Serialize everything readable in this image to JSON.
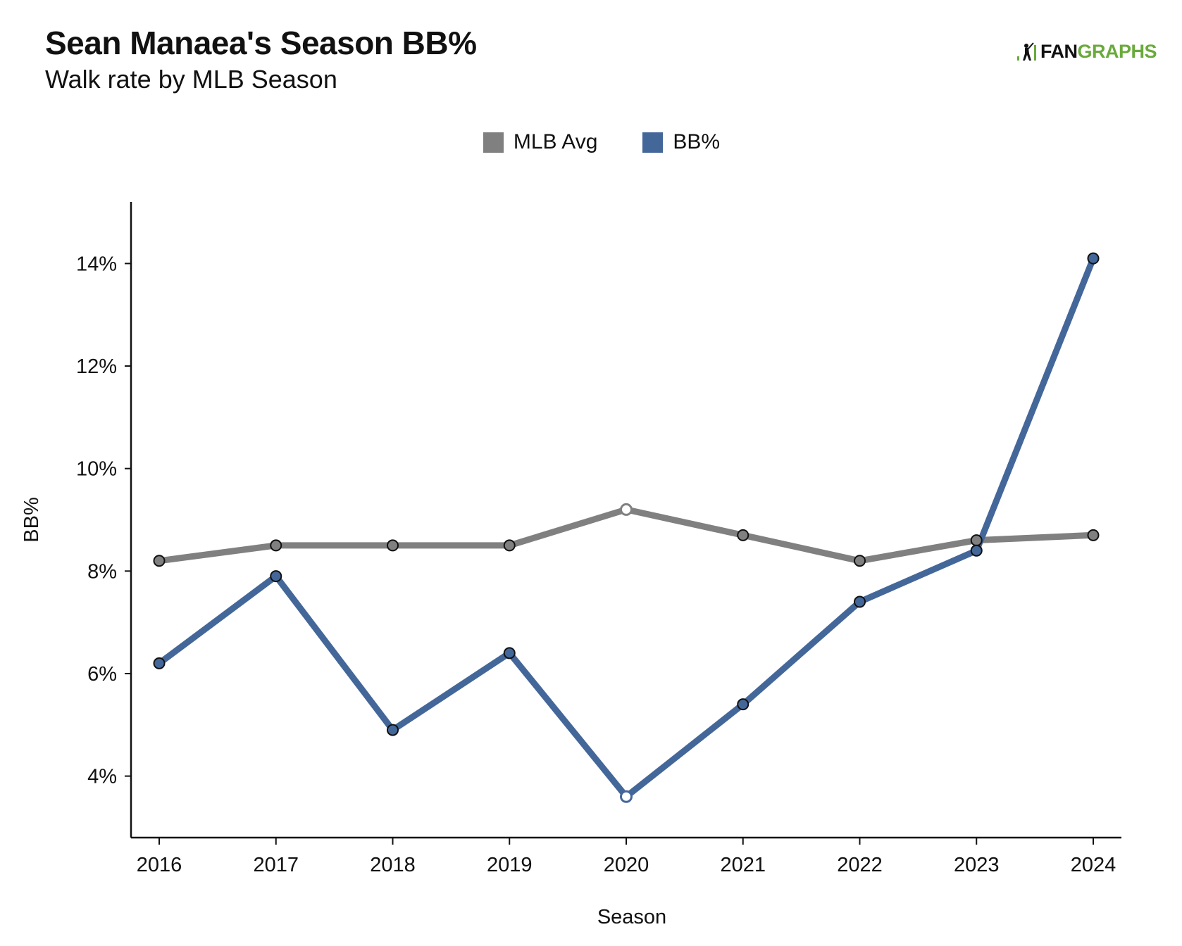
{
  "header": {
    "title": "Sean Manaea's Season BB%",
    "subtitle": "Walk rate by MLB Season"
  },
  "logo": {
    "text_dark": "FAN",
    "text_green": "GRAPHS",
    "icon": "batter-icon"
  },
  "colors": {
    "mlb_avg": "#808080",
    "bb_pct": "#44679a",
    "logo_green": "#6aaa3c"
  },
  "chart_data": {
    "type": "line",
    "title": "Sean Manaea's Season BB%",
    "subtitle": "Walk rate by MLB Season",
    "xlabel": "Season",
    "ylabel": "BB%",
    "x": [
      2016,
      2017,
      2018,
      2019,
      2020,
      2021,
      2022,
      2023,
      2024
    ],
    "ylim": [
      2.8,
      15.2
    ],
    "yticks": [
      4,
      6,
      8,
      10,
      12,
      14
    ],
    "ytick_format": "{v}%",
    "grid": false,
    "legend_position": "top-center",
    "highlight_x": 2020,
    "series": [
      {
        "name": "MLB Avg",
        "color": "#808080",
        "values": [
          8.2,
          8.5,
          8.5,
          8.5,
          9.2,
          8.7,
          8.2,
          8.6,
          8.7
        ]
      },
      {
        "name": "BB%",
        "color": "#44679a",
        "values": [
          6.2,
          7.9,
          4.9,
          6.4,
          3.6,
          5.4,
          7.4,
          8.4,
          14.1
        ]
      }
    ]
  }
}
